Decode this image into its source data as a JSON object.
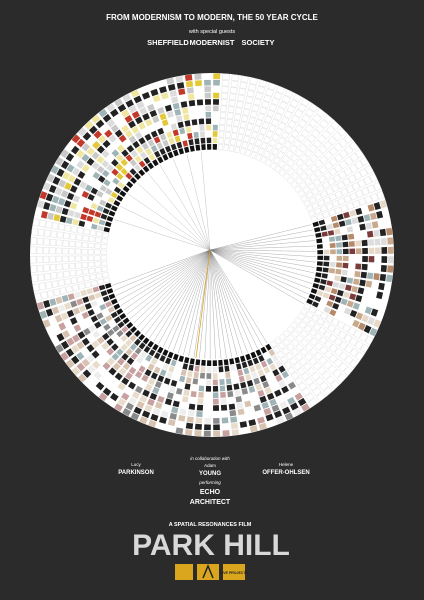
{
  "header": {
    "title": "FROM MODERNISM TO MODERN, THE 50 YEAR CYCLE",
    "guests_intro": "with special guests",
    "guests": [
      "SHEFFIELD",
      "MODERNIST",
      "SOCIETY"
    ]
  },
  "credits": {
    "left": {
      "first": "Lucy",
      "last": "PARKINSON"
    },
    "collab": "in collaboration with",
    "center": {
      "first": "Adam",
      "last": "YOUNG"
    },
    "right": {
      "first": "Helene",
      "last": "OFFER-OHLSEN"
    },
    "performing": "performing",
    "band": [
      "ECHO",
      "ARCHITECT"
    ]
  },
  "footer": {
    "presenter": "A SPATIAL RESONANCES FILM",
    "title": "PARK HILL",
    "logo": "LIVE PROJECTS"
  }
}
